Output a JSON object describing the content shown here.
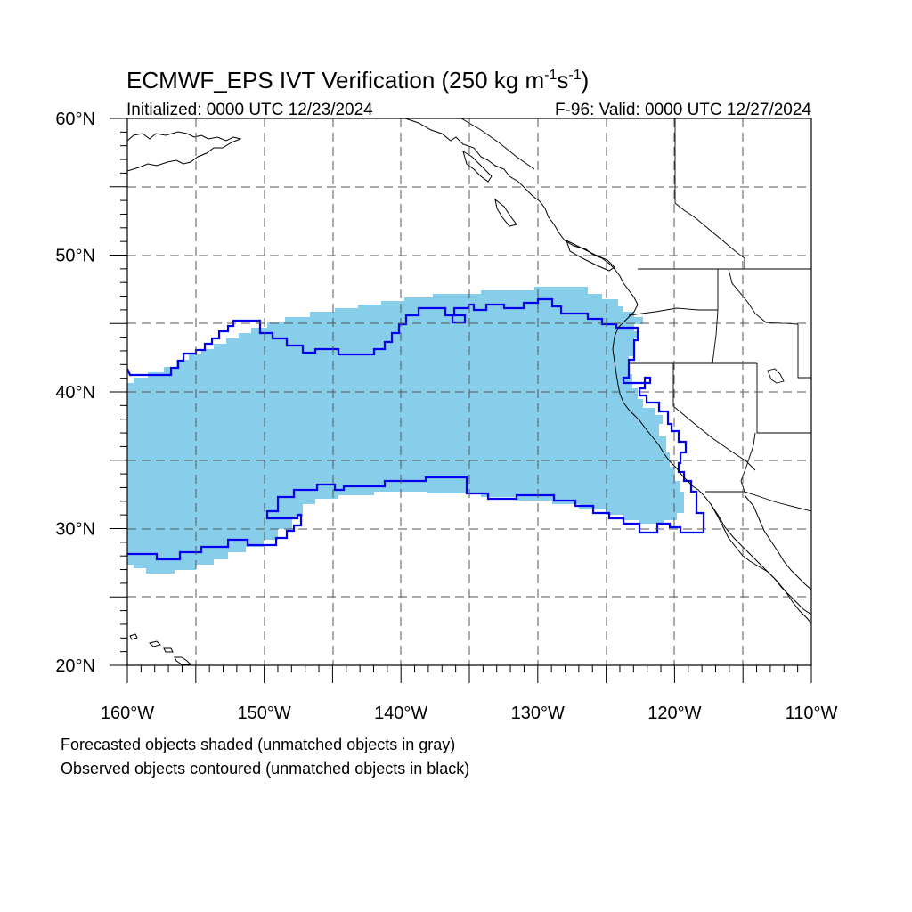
{
  "title": {
    "main": "ECMWF_EPS IVT Verification (250 kg m",
    "sup1": "-1",
    "mid": "s",
    "sup2": "-1",
    "end": ")"
  },
  "subtitle": {
    "left": "Initialized: 0000 UTC 12/23/2024",
    "right": "F-96: Valid: 0000 UTC 12/27/2024"
  },
  "map": {
    "lon_range": [
      -160,
      -110
    ],
    "lat_range": [
      20,
      60
    ],
    "lat_ticks": [
      {
        "value": 60,
        "label": "60°N"
      },
      {
        "value": 50,
        "label": "50°N"
      },
      {
        "value": 40,
        "label": "40°N"
      },
      {
        "value": 30,
        "label": "30°N"
      },
      {
        "value": 20,
        "label": "20°N"
      }
    ],
    "lon_ticks": [
      {
        "value": -160,
        "label": "160°W"
      },
      {
        "value": -150,
        "label": "150°W"
      },
      {
        "value": -140,
        "label": "140°W"
      },
      {
        "value": -130,
        "label": "130°W"
      },
      {
        "value": -120,
        "label": "120°W"
      },
      {
        "value": -110,
        "label": "110°W"
      }
    ],
    "colors": {
      "forecast_fill": "#87CEEB",
      "observed_contour": "#0000EE",
      "coastline": "#000000",
      "grid": "#555555"
    }
  },
  "legend": {
    "line1": "Forecasted objects shaded (unmatched objects in gray)",
    "line2": "Observed objects contoured (unmatched objects in black)"
  }
}
